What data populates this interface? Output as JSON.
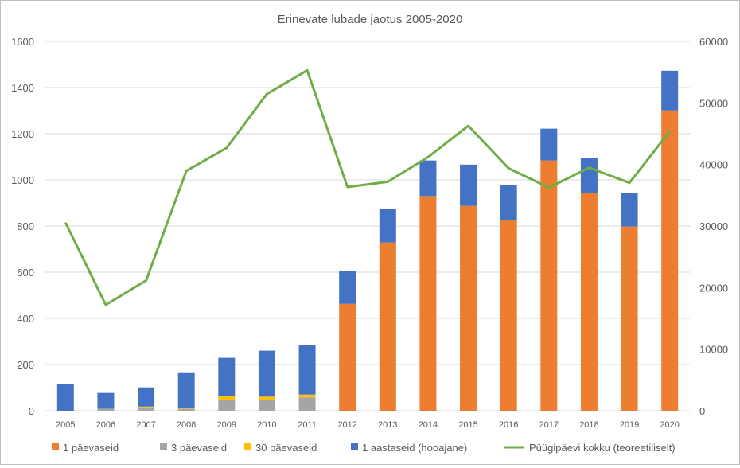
{
  "chart_data": {
    "type": "bar",
    "title": "Erinevate lubade jaotus 2005-2020",
    "stacked": true,
    "categories": [
      "2005",
      "2006",
      "2007",
      "2008",
      "2009",
      "2010",
      "2011",
      "2012",
      "2013",
      "2014",
      "2015",
      "2016",
      "2017",
      "2018",
      "2019",
      "2020"
    ],
    "y_left": {
      "range": [
        0,
        1600
      ],
      "ticks": [
        "0",
        "200",
        "400",
        "600",
        "800",
        "1000",
        "1200",
        "1400",
        "1600"
      ]
    },
    "y_right": {
      "range": [
        0,
        60000
      ],
      "ticks": [
        "0",
        "10000",
        "20000",
        "30000",
        "40000",
        "50000",
        "60000"
      ]
    },
    "grid": true,
    "legend_position": "bottom",
    "series": [
      {
        "name": "1 päevaseid",
        "type": "bar",
        "axis": "left",
        "color": "#ED7D31",
        "values": [
          0,
          0,
          0,
          0,
          0,
          0,
          0,
          463,
          729,
          930,
          887,
          826,
          1084,
          943,
          798,
          1301
        ]
      },
      {
        "name": "3 päevaseid",
        "type": "bar",
        "axis": "left",
        "color": "#A5A5A5",
        "values": [
          0,
          9,
          15,
          9,
          46,
          46,
          58,
          0,
          0,
          0,
          0,
          0,
          0,
          0,
          0,
          0
        ]
      },
      {
        "name": "30 päevaseid",
        "type": "bar",
        "axis": "left",
        "color": "#FFC000",
        "values": [
          0,
          0,
          3,
          3,
          18,
          15,
          12,
          0,
          0,
          0,
          0,
          0,
          0,
          0,
          0,
          0
        ]
      },
      {
        "name": "1 aastaseid (hooajane)",
        "type": "bar",
        "axis": "left",
        "color": "#4472C4",
        "values": [
          115,
          68,
          83,
          151,
          165,
          199,
          214,
          142,
          145,
          154,
          179,
          151,
          138,
          152,
          145,
          172
        ]
      },
      {
        "name": "Püügipäevi kokku (teoreetiliselt)",
        "type": "line",
        "axis": "right",
        "color": "#70AD47",
        "values": [
          30550,
          17200,
          21150,
          38960,
          42700,
          51460,
          55300,
          36330,
          37190,
          41200,
          46290,
          39390,
          36240,
          39480,
          37020,
          45380
        ]
      }
    ]
  }
}
